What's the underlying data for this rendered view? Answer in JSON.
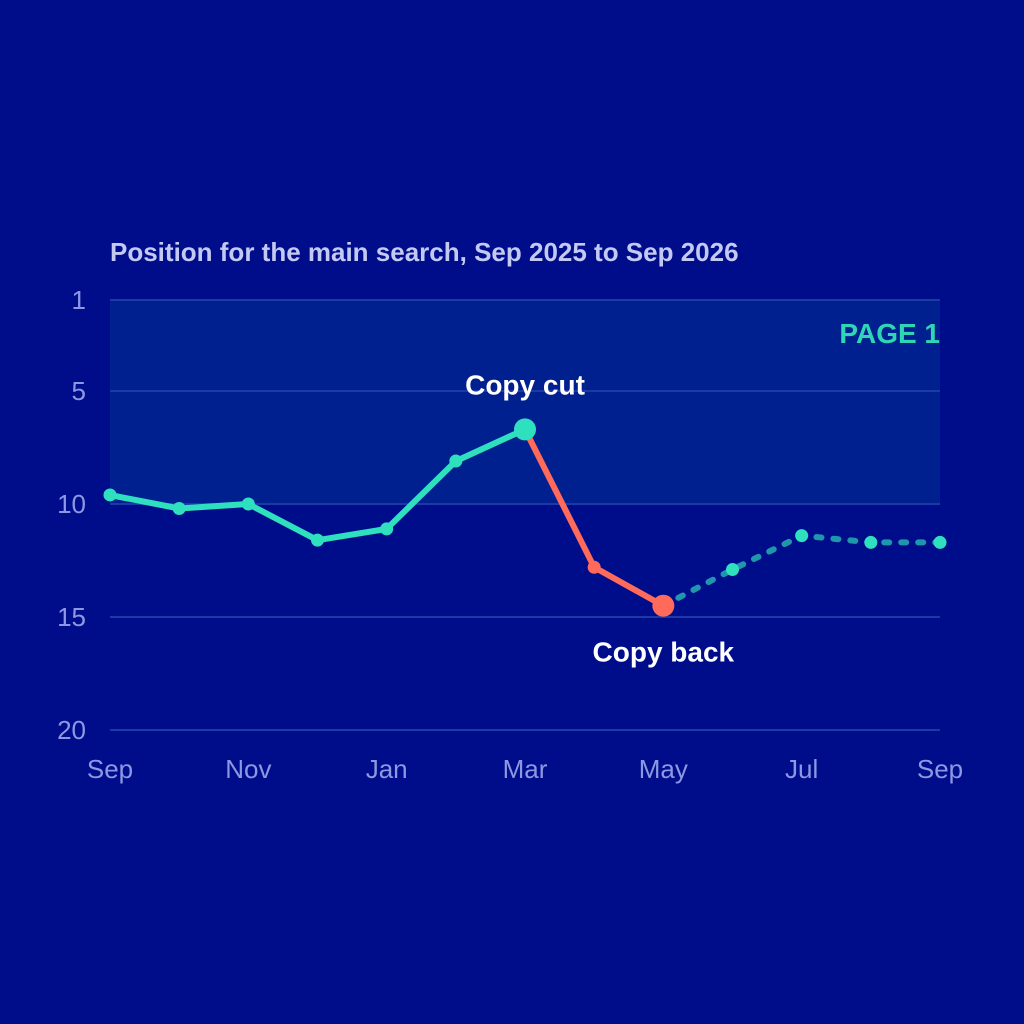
{
  "chart_data": {
    "type": "line",
    "title": "Position for the main search, Sep 2025 to Sep 2026",
    "xlabel": "",
    "ylabel": "",
    "x": [
      "2025-09-01",
      "2025-10-01",
      "2025-11-01",
      "2025-12-01",
      "2026-01-01",
      "2026-02-01",
      "2026-03-01",
      "2026-04-01",
      "2026-05-01",
      "2026-06-01",
      "2026-07-01",
      "2026-08-01",
      "2026-09-01"
    ],
    "x_tick_labels": [
      "Sep",
      "Nov",
      "Jan",
      "Mar",
      "May",
      "Jul",
      "Sep"
    ],
    "y_ticks": [
      1,
      5,
      10,
      15,
      20
    ],
    "ylim": [
      1,
      20
    ],
    "y_inverted": true,
    "grid": "horizontal",
    "band": {
      "label": "PAGE 1",
      "from": 1,
      "to": 10
    },
    "series": [
      {
        "segment": "before",
        "color": "#2fe0bf",
        "style": "solid",
        "points": [
          [
            "2025-09-01",
            9.6
          ],
          [
            "2025-10-01",
            10.2
          ],
          [
            "2025-11-01",
            10.0
          ],
          [
            "2025-12-01",
            11.6
          ],
          [
            "2026-01-01",
            11.1
          ],
          [
            "2026-02-01",
            8.1
          ],
          [
            "2026-03-01",
            6.7
          ]
        ]
      },
      {
        "segment": "drop",
        "color": "#ff6a5a",
        "style": "solid",
        "points": [
          [
            "2026-03-01",
            6.7
          ],
          [
            "2026-04-01",
            12.8
          ],
          [
            "2026-05-01",
            14.5
          ]
        ]
      },
      {
        "segment": "recovery",
        "color": "#2fe0bf",
        "style": "dotted",
        "points": [
          [
            "2026-05-01",
            14.5
          ],
          [
            "2026-06-01",
            12.9
          ],
          [
            "2026-07-01",
            11.4
          ],
          [
            "2026-08-01",
            11.7
          ],
          [
            "2026-09-01",
            11.7
          ]
        ]
      }
    ],
    "annotations": [
      {
        "text": "Copy cut",
        "x": "2026-03-01",
        "y": 6.7,
        "placement": "above"
      },
      {
        "text": "Copy back",
        "x": "2026-05-01",
        "y": 14.5,
        "placement": "below"
      }
    ],
    "colors": {
      "background": "#000d8a",
      "band": "#00208f",
      "grid": "#1c3aa6",
      "accent": "#2fe0bf",
      "drop": "#ff6a5a"
    }
  }
}
